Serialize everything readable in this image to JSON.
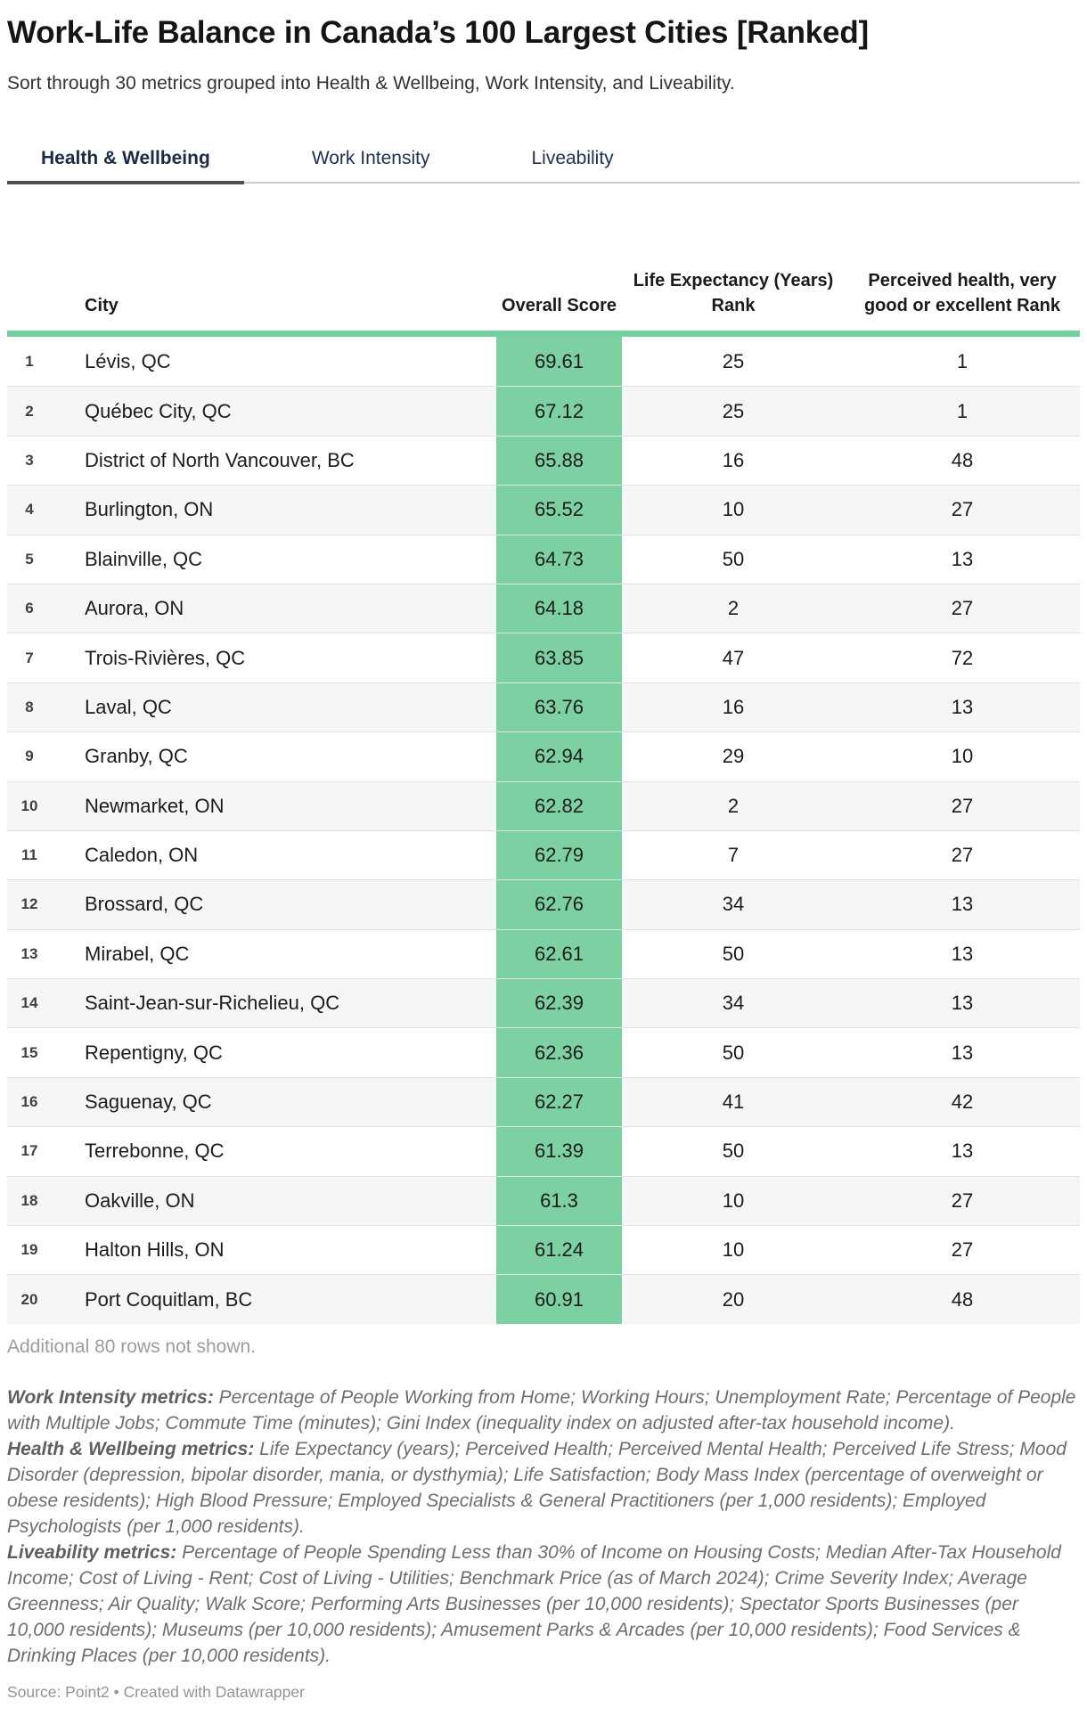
{
  "header": {
    "title": "Work-Life Balance in Canada’s 100 Largest Cities [Ranked]",
    "subtitle": "Sort through 30 metrics grouped into Health & Wellbeing, Work Intensity, and Liveability."
  },
  "tabs": [
    {
      "label": "Health & Wellbeing",
      "active": true
    },
    {
      "label": "Work Intensity",
      "active": false
    },
    {
      "label": "Liveability",
      "active": false
    }
  ],
  "chart_data": {
    "type": "table",
    "title": "Work-Life Balance in Canada’s 100 Largest Cities [Ranked]",
    "active_tab": "Health & Wellbeing",
    "columns": [
      "City",
      "Overall Score",
      "Life Expectancy (Years) Rank",
      "Perceived health, very good or excellent Rank"
    ],
    "row_fields": [
      "rank",
      "city",
      "overall_score",
      "life_expectancy_rank",
      "perceived_health_rank"
    ],
    "rows": [
      [
        "1",
        "Lévis, QC",
        "69.61",
        "25",
        "1"
      ],
      [
        "2",
        "Québec City, QC",
        "67.12",
        "25",
        "1"
      ],
      [
        "3",
        "District of North Vancouver, BC",
        "65.88",
        "16",
        "48"
      ],
      [
        "4",
        "Burlington, ON",
        "65.52",
        "10",
        "27"
      ],
      [
        "5",
        "Blainville, QC",
        "64.73",
        "50",
        "13"
      ],
      [
        "6",
        "Aurora, ON",
        "64.18",
        "2",
        "27"
      ],
      [
        "7",
        "Trois-Rivières, QC",
        "63.85",
        "47",
        "72"
      ],
      [
        "8",
        "Laval, QC",
        "63.76",
        "16",
        "13"
      ],
      [
        "9",
        "Granby, QC",
        "62.94",
        "29",
        "10"
      ],
      [
        "10",
        "Newmarket, ON",
        "62.82",
        "2",
        "27"
      ],
      [
        "11",
        "Caledon, ON",
        "62.79",
        "7",
        "27"
      ],
      [
        "12",
        "Brossard, QC",
        "62.76",
        "34",
        "13"
      ],
      [
        "13",
        "Mirabel, QC",
        "62.61",
        "50",
        "13"
      ],
      [
        "14",
        "Saint-Jean-sur-Richelieu, QC",
        "62.39",
        "34",
        "13"
      ],
      [
        "15",
        "Repentigny, QC",
        "62.36",
        "50",
        "13"
      ],
      [
        "16",
        "Saguenay, QC",
        "62.27",
        "41",
        "42"
      ],
      [
        "17",
        "Terrebonne, QC",
        "61.39",
        "50",
        "13"
      ],
      [
        "18",
        "Oakville, ON",
        "61.3",
        "10",
        "27"
      ],
      [
        "19",
        "Halton Hills, ON",
        "61.24",
        "10",
        "27"
      ],
      [
        "20",
        "Port Coquitlam, BC",
        "60.91",
        "20",
        "48"
      ]
    ]
  },
  "table": {
    "more_rows_note": "Additional 80 rows not shown."
  },
  "notes": [
    {
      "label": "Work Intensity metrics:",
      "text": " Percentage of People Working from Home; Working Hours; Unemployment Rate; Percentage of People with Multiple Jobs; Commute Time (minutes); Gini Index (inequality index on adjusted after-tax household income)."
    },
    {
      "label": "Health & Wellbeing metrics:",
      "text": " Life Expectancy (years); Perceived Health; Perceived Mental Health; Perceived Life Stress; Mood Disorder (depression, bipolar disorder, mania, or dysthymia); Life Satisfaction; Body Mass Index (percentage of overweight or obese residents); High Blood Pressure; Employed Specialists & General Practitioners (per 1,000 residents); Employed Psychologists (per 1,000 residents)."
    },
    {
      "label": "Liveability metrics:",
      "text": " Percentage of People Spending Less than 30% of Income on Housing Costs; Median After-Tax Household Income; Cost of Living - Rent; Cost of Living - Utilities; Benchmark Price (as of March 2024); Crime Severity Index; Average Greenness; Air Quality; Walk Score; Performing Arts Businesses (per 10,000 residents); Spectator Sports Businesses (per 10,000 residents); Museums (per 10,000 residents); Amusement Parks & Arcades (per 10,000 residents); Food Services & Drinking Places (per 10,000 residents)."
    }
  ],
  "footer": {
    "source_label": "Source: Point2",
    "separator": " • ",
    "attribution": "Created with Datawrapper"
  },
  "colors": {
    "accent_green_cell": "#7cd0a2",
    "accent_green_bar": "#74d0a0",
    "tab_text": "#223050",
    "active_tab_underline": "#4f4f4f",
    "alt_row_bg": "#f5f6f6",
    "muted_text": "#9d9d9d"
  }
}
